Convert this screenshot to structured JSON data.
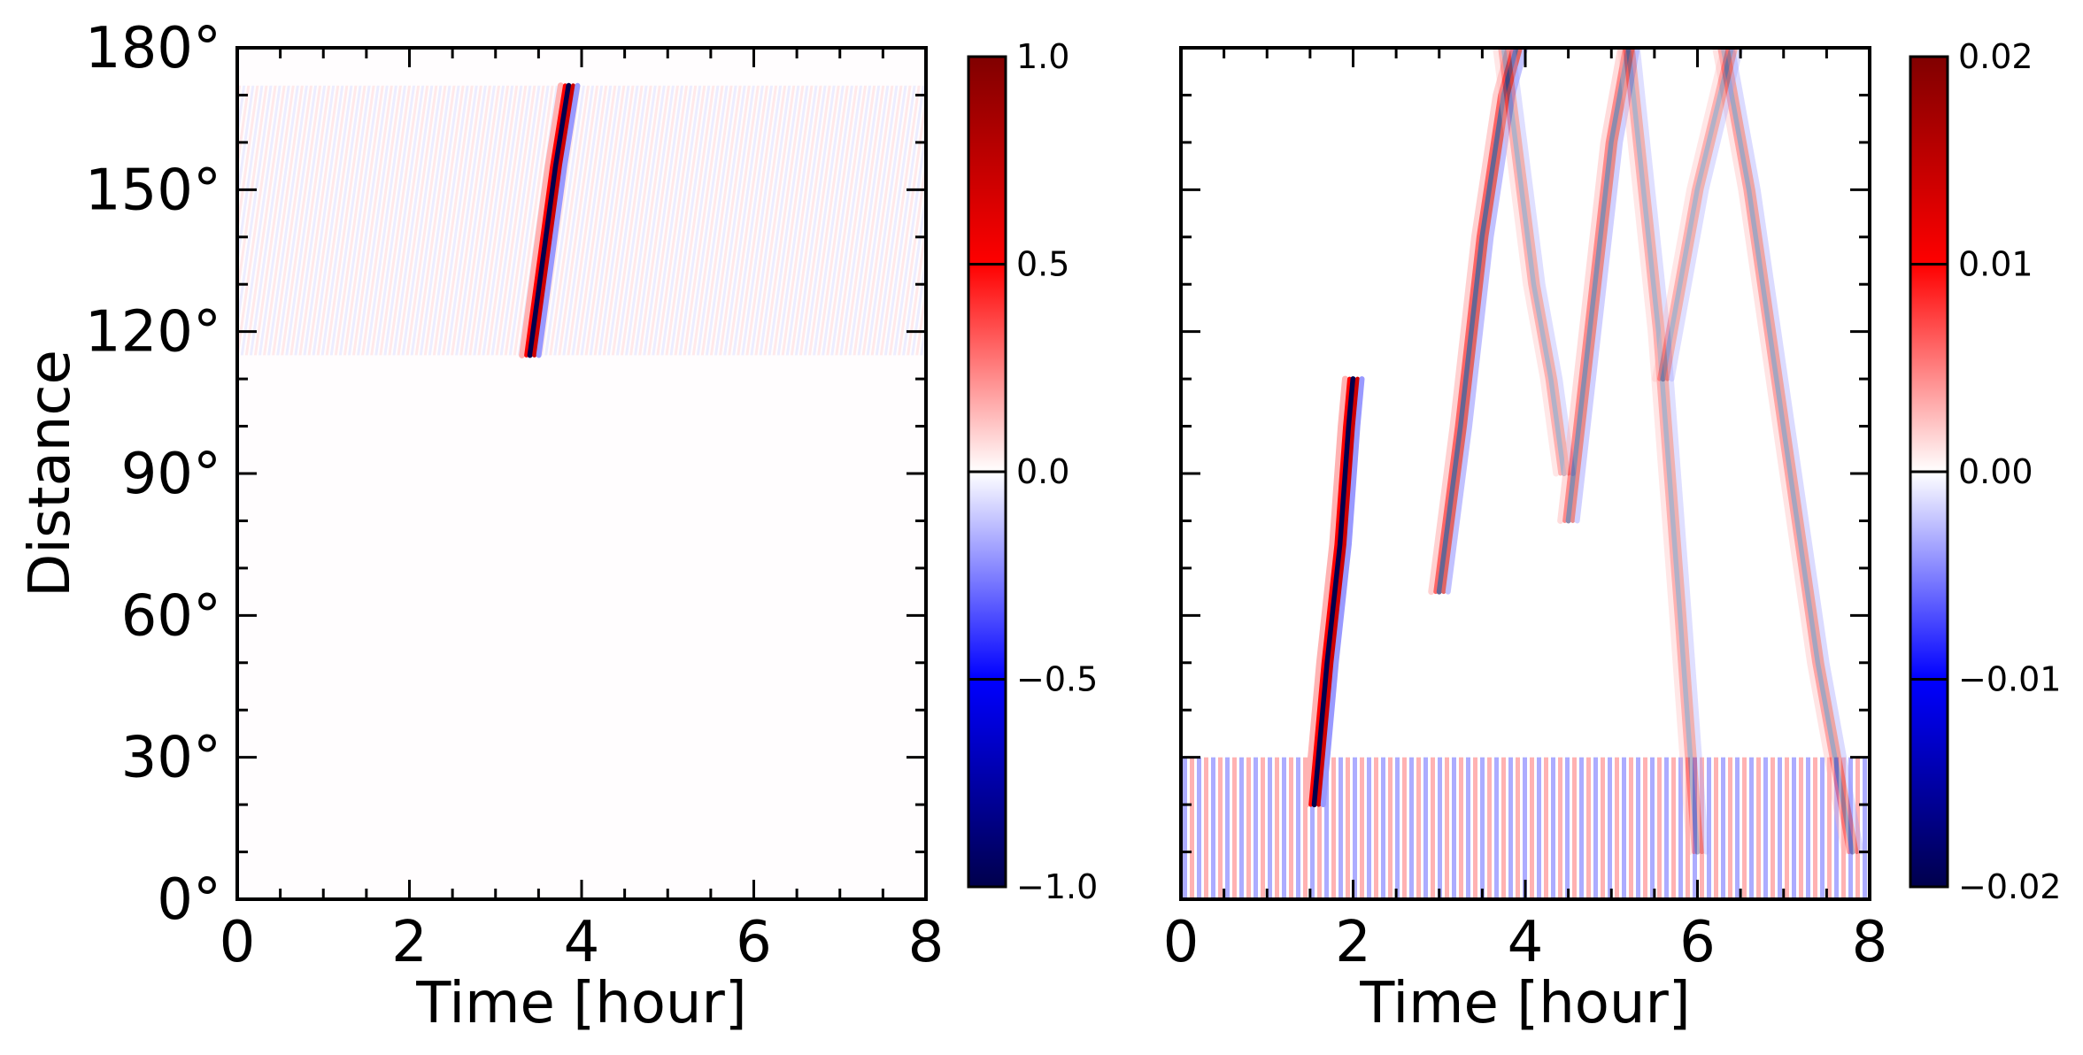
{
  "chart_data": [
    {
      "type": "heatmap",
      "xlabel": "Time [hour]",
      "ylabel": "Distance",
      "xlim": [
        0,
        8
      ],
      "ylim": [
        0,
        180
      ],
      "x_ticks": [
        "0",
        "2",
        "4",
        "6",
        "8"
      ],
      "y_ticks": [
        "0°",
        "30°",
        "60°",
        "90°",
        "120°",
        "150°",
        "180°"
      ],
      "colorbar": {
        "range": [
          -1.0,
          1.0
        ],
        "ticks": [
          "1.0",
          "0.5",
          "0.0",
          "−0.5",
          "−1.0"
        ],
        "colormap": "seismic"
      },
      "data_region": {
        "distance_range": [
          115,
          172
        ],
        "time_range": [
          0,
          8
        ]
      },
      "features": [
        {
          "kind": "wave-arrival",
          "points": [
            [
              3.4,
              115
            ],
            [
              3.55,
              135
            ],
            [
              3.7,
              155
            ],
            [
              3.85,
              172
            ]
          ],
          "amplitude": 1.0
        }
      ]
    },
    {
      "type": "heatmap",
      "xlabel": "Time [hour]",
      "ylabel": "",
      "xlim": [
        0,
        8
      ],
      "ylim": [
        0,
        180
      ],
      "x_ticks": [
        "0",
        "2",
        "4",
        "6",
        "8"
      ],
      "colorbar": {
        "range": [
          -0.02,
          0.02
        ],
        "ticks": [
          "0.02",
          "0.01",
          "0.00",
          "−0.01",
          "−0.02"
        ],
        "colormap": "seismic"
      },
      "features": [
        {
          "kind": "wave-arrival",
          "points": [
            [
              1.55,
              20
            ],
            [
              1.7,
              50
            ],
            [
              1.85,
              75
            ],
            [
              1.95,
              100
            ],
            [
              2.0,
              110
            ]
          ],
          "amplitude": 0.02
        },
        {
          "kind": "wave-arrival",
          "points": [
            [
              3.0,
              65
            ],
            [
              3.25,
              100
            ],
            [
              3.5,
              140
            ],
            [
              3.75,
              170
            ],
            [
              3.9,
              180
            ]
          ],
          "amplitude": 0.012
        },
        {
          "kind": "wave-arrival",
          "points": [
            [
              3.75,
              180
            ],
            [
              4.1,
              130
            ],
            [
              4.3,
              110
            ],
            [
              4.45,
              90
            ]
          ],
          "amplitude": 0.006
        },
        {
          "kind": "wave-arrival",
          "points": [
            [
              4.5,
              80
            ],
            [
              4.75,
              120
            ],
            [
              5.0,
              160
            ],
            [
              5.2,
              180
            ]
          ],
          "amplitude": 0.009
        },
        {
          "kind": "wave-arrival",
          "points": [
            [
              5.2,
              180
            ],
            [
              5.55,
              120
            ],
            [
              5.8,
              60
            ],
            [
              6.0,
              10
            ]
          ],
          "amplitude": 0.006
        },
        {
          "kind": "wave-arrival",
          "points": [
            [
              6.3,
              180
            ],
            [
              6.6,
              150
            ],
            [
              7.0,
              100
            ],
            [
              7.4,
              50
            ],
            [
              7.8,
              10
            ]
          ],
          "amplitude": 0.007
        },
        {
          "kind": "wave-arrival",
          "points": [
            [
              5.6,
              110
            ],
            [
              6.0,
              150
            ],
            [
              6.4,
              180
            ]
          ],
          "amplitude": 0.006
        }
      ],
      "bottom_noise_band": {
        "distance_range": [
          0,
          30
        ],
        "amplitude": 0.015
      }
    }
  ],
  "colors": {
    "max_positive": "#800000",
    "positive": "#ff0000",
    "zero": "#ffffff",
    "negative": "#0000ff",
    "max_negative": "#00004c"
  }
}
